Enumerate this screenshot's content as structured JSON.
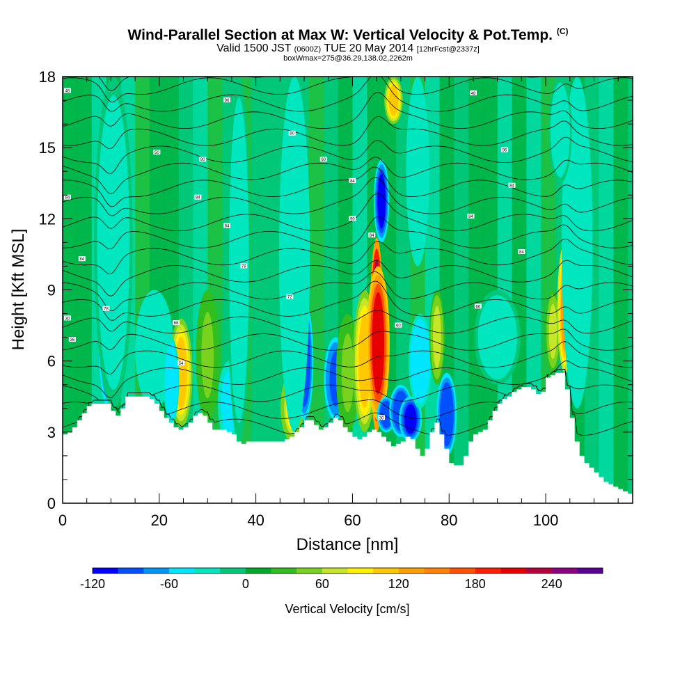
{
  "title": {
    "main": "Wind-Parallel Section at Max W: Vertical Velocity & Pot.Temp.",
    "copyright": "(C)",
    "valid_prefix": "Valid 1500 JST",
    "valid_utc": "(0600Z)",
    "valid_date": "TUE 20 May 2014",
    "forecast": "[12hrFcst@2337z]",
    "box": "boxWmax=275@36.29,138.02,2262m"
  },
  "chart_data": {
    "type": "heatmap",
    "xlabel": "Distance [nm]",
    "ylabel": "Height [Kft MSL]",
    "xlim": [
      0,
      118
    ],
    "ylim": [
      0,
      18
    ],
    "x_ticks": [
      0,
      20,
      40,
      60,
      80,
      100
    ],
    "y_ticks": [
      0,
      3,
      6,
      9,
      12,
      15,
      18
    ],
    "grid": false,
    "colorbar": {
      "title": "Vertical Velocity [cm/s]",
      "position": "bottom",
      "levels": [
        -120,
        -100,
        -80,
        -60,
        -40,
        -20,
        0,
        20,
        40,
        60,
        80,
        100,
        120,
        140,
        160,
        180,
        200,
        220,
        240,
        260,
        280
      ],
      "tick_labels": [
        "-120",
        "-60",
        "0",
        "60",
        "120",
        "180",
        "240"
      ],
      "tick_values": [
        -120,
        -60,
        0,
        60,
        120,
        180,
        240
      ],
      "colors": [
        "#0000ff",
        "#0050ff",
        "#0096f5",
        "#00e6ff",
        "#00e6be",
        "#00c878",
        "#00aa28",
        "#32be1e",
        "#78d21e",
        "#c8e628",
        "#fff000",
        "#ffc800",
        "#ffa000",
        "#ff8200",
        "#ff5000",
        "#ff1e00",
        "#e60000",
        "#b4003c",
        "#8c0082",
        "#5a0096"
      ]
    },
    "terrain_kft": [
      [
        0,
        2.9
      ],
      [
        1,
        3.0
      ],
      [
        2,
        3.2
      ],
      [
        3,
        3.5
      ],
      [
        4,
        3.8
      ],
      [
        5,
        4.1
      ],
      [
        6,
        4.2
      ],
      [
        7,
        4.2
      ],
      [
        8,
        4.2
      ],
      [
        9,
        4.2
      ],
      [
        10,
        3.9
      ],
      [
        11,
        3.7
      ],
      [
        12,
        4.0
      ],
      [
        13,
        4.5
      ],
      [
        14,
        4.5
      ],
      [
        15,
        4.5
      ],
      [
        16,
        4.5
      ],
      [
        17,
        4.5
      ],
      [
        18,
        4.4
      ],
      [
        19,
        4.2
      ],
      [
        20,
        3.9
      ],
      [
        21,
        3.6
      ],
      [
        22,
        3.4
      ],
      [
        23,
        3.2
      ],
      [
        24,
        3.1
      ],
      [
        25,
        3.2
      ],
      [
        26,
        3.4
      ],
      [
        27,
        3.7
      ],
      [
        28,
        3.8
      ],
      [
        29,
        3.7
      ],
      [
        30,
        3.4
      ],
      [
        31,
        3.1
      ],
      [
        32,
        3.1
      ],
      [
        33,
        3.1
      ],
      [
        34,
        3.0
      ],
      [
        35,
        2.9
      ],
      [
        36,
        2.6
      ],
      [
        37,
        2.5
      ],
      [
        38,
        2.6
      ],
      [
        39,
        2.6
      ],
      [
        40,
        2.6
      ],
      [
        41,
        2.6
      ],
      [
        42,
        2.6
      ],
      [
        43,
        2.6
      ],
      [
        44,
        2.6
      ],
      [
        45,
        2.6
      ],
      [
        46,
        2.7
      ],
      [
        47,
        2.8
      ],
      [
        48,
        3.0
      ],
      [
        49,
        3.2
      ],
      [
        50,
        3.5
      ],
      [
        51,
        3.5
      ],
      [
        52,
        3.3
      ],
      [
        53,
        3.1
      ],
      [
        54,
        3.2
      ],
      [
        55,
        3.4
      ],
      [
        56,
        3.6
      ],
      [
        57,
        3.5
      ],
      [
        58,
        3.2
      ],
      [
        59,
        3.0
      ],
      [
        60,
        2.8
      ],
      [
        61,
        2.7
      ],
      [
        62,
        2.8
      ],
      [
        63,
        3.0
      ],
      [
        64,
        3.1
      ],
      [
        65,
        3.0
      ],
      [
        66,
        2.8
      ],
      [
        67,
        2.6
      ],
      [
        68,
        2.4
      ],
      [
        69,
        2.5
      ],
      [
        70,
        2.6
      ],
      [
        71,
        2.8
      ],
      [
        72,
        2.7
      ],
      [
        73,
        2.3
      ],
      [
        74,
        2.0
      ],
      [
        75,
        2.3
      ],
      [
        76,
        3.0
      ],
      [
        77,
        3.4
      ],
      [
        78,
        2.9
      ],
      [
        79,
        2.3
      ],
      [
        80,
        1.7
      ],
      [
        81,
        1.6
      ],
      [
        82,
        1.6
      ],
      [
        83,
        2.0
      ],
      [
        84,
        2.6
      ],
      [
        85,
        2.9
      ],
      [
        86,
        3.0
      ],
      [
        87,
        3.1
      ],
      [
        88,
        3.5
      ],
      [
        89,
        3.9
      ],
      [
        90,
        4.2
      ],
      [
        91,
        4.4
      ],
      [
        92,
        4.5
      ],
      [
        93,
        4.7
      ],
      [
        94,
        4.8
      ],
      [
        95,
        4.9
      ],
      [
        96,
        4.9
      ],
      [
        97,
        4.8
      ],
      [
        98,
        4.6
      ],
      [
        99,
        4.7
      ],
      [
        100,
        5.3
      ],
      [
        101,
        5.4
      ],
      [
        102,
        5.5
      ],
      [
        103,
        5.5
      ],
      [
        104,
        4.8
      ],
      [
        105,
        3.6
      ],
      [
        106,
        2.6
      ],
      [
        107,
        2.0
      ],
      [
        108,
        1.7
      ],
      [
        109,
        1.5
      ],
      [
        110,
        1.3
      ],
      [
        111,
        1.1
      ],
      [
        112,
        0.9
      ],
      [
        113,
        0.8
      ],
      [
        114,
        0.7
      ],
      [
        115,
        0.6
      ],
      [
        116,
        0.5
      ],
      [
        117,
        0.4
      ],
      [
        118,
        0.3
      ]
    ],
    "vertical_velocity_features": [
      {
        "x": 9.5,
        "z_low": 4.0,
        "z_high": 10.0,
        "value": -100,
        "width_nm": 1.3
      },
      {
        "x": 11.2,
        "z_low": 4.5,
        "z_high": 11.0,
        "value": 80,
        "width_nm": 1.0
      },
      {
        "x": 10.5,
        "z_low": 4.0,
        "z_high": 18.0,
        "value": -30,
        "width_nm": 2.5
      },
      {
        "x": 19.0,
        "z_low": 4.0,
        "z_high": 9.0,
        "value": -40,
        "width_nm": 2.5
      },
      {
        "x": 24.5,
        "z_low": 3.2,
        "z_high": 7.8,
        "value": 100,
        "width_nm": 1.5
      },
      {
        "x": 22.5,
        "z_low": 3.3,
        "z_high": 7.0,
        "value": -60,
        "width_nm": 1.0
      },
      {
        "x": 30.0,
        "z_low": 3.5,
        "z_high": 9.0,
        "value": 40,
        "width_nm": 1.5
      },
      {
        "x": 34.5,
        "z_low": 2.5,
        "z_high": 6.0,
        "value": -50,
        "width_nm": 1.5
      },
      {
        "x": 36.5,
        "z_low": 2.5,
        "z_high": 18.0,
        "value": -30,
        "width_nm": 1.5
      },
      {
        "x": 47.5,
        "z_low": 2.6,
        "z_high": 5.5,
        "value": 80,
        "width_nm": 1.5
      },
      {
        "x": 50.0,
        "z_low": 3.5,
        "z_high": 8.5,
        "value": -100,
        "width_nm": 1.2
      },
      {
        "x": 48.0,
        "z_low": 3.0,
        "z_high": 18.0,
        "value": -40,
        "width_nm": 2.0
      },
      {
        "x": 56.5,
        "z_low": 3.5,
        "z_high": 7.0,
        "value": -90,
        "width_nm": 1.5
      },
      {
        "x": 59.0,
        "z_low": 3.0,
        "z_high": 8.0,
        "value": 40,
        "width_nm": 1.5
      },
      {
        "x": 62.5,
        "z_low": 3.0,
        "z_high": 9.0,
        "value": 110,
        "width_nm": 1.5
      },
      {
        "x": 65.0,
        "z_low": 3.0,
        "z_high": 11.2,
        "value": 270,
        "width_nm": 0.9
      },
      {
        "x": 65.3,
        "z_low": 3.5,
        "z_high": 10.0,
        "value": 200,
        "width_nm": 1.5
      },
      {
        "x": 67.0,
        "z_low": 3.0,
        "z_high": 4.5,
        "value": -100,
        "width_nm": 1.2
      },
      {
        "x": 66.0,
        "z_low": 11.0,
        "z_high": 14.5,
        "value": -110,
        "width_nm": 1.0
      },
      {
        "x": 68.5,
        "z_low": 16.0,
        "z_high": 18.0,
        "value": 110,
        "width_nm": 1.2
      },
      {
        "x": 70.0,
        "z_low": 2.8,
        "z_high": 5.0,
        "value": -100,
        "width_nm": 1.5
      },
      {
        "x": 72.0,
        "z_low": 2.6,
        "z_high": 4.5,
        "value": -110,
        "width_nm": 1.5
      },
      {
        "x": 74.0,
        "z_low": 4.0,
        "z_high": 8.0,
        "value": -60,
        "width_nm": 1.5
      },
      {
        "x": 73.5,
        "z_low": 10.0,
        "z_high": 18.0,
        "value": -40,
        "width_nm": 1.5
      },
      {
        "x": 79.5,
        "z_low": 2.0,
        "z_high": 5.5,
        "value": -100,
        "width_nm": 1.3
      },
      {
        "x": 77.5,
        "z_low": 5.0,
        "z_high": 9.0,
        "value": 60,
        "width_nm": 1.0
      },
      {
        "x": 101.5,
        "z_low": 5.5,
        "z_high": 9.0,
        "value": 60,
        "width_nm": 1.0
      },
      {
        "x": 104.0,
        "z_low": 5.5,
        "z_high": 11.0,
        "value": 130,
        "width_nm": 1.0
      },
      {
        "x": 106.5,
        "z_low": 4.0,
        "z_high": 18.0,
        "value": -40,
        "width_nm": 2.0
      },
      {
        "x": 103.0,
        "z_low": 13.5,
        "z_high": 18.0,
        "value": -30,
        "width_nm": 1.5
      },
      {
        "x": 90.0,
        "z_low": 5.0,
        "z_high": 9.0,
        "value": -30,
        "width_nm": 3.0
      }
    ],
    "potential_temperature_contours": {
      "labels": [
        "30",
        "36",
        "42",
        "48",
        "50",
        "54",
        "60",
        "66",
        "72",
        "78",
        "84",
        "90",
        "96"
      ],
      "label_positions_kft": [
        {
          "x": 1.0,
          "z": 17.4,
          "text": "48"
        },
        {
          "x": 34.0,
          "z": 17.0,
          "text": "96"
        },
        {
          "x": 47.5,
          "z": 15.6,
          "text": "90"
        },
        {
          "x": 85.0,
          "z": 17.3,
          "text": "48"
        },
        {
          "x": 19.5,
          "z": 14.8,
          "text": "50"
        },
        {
          "x": 29.0,
          "z": 14.5,
          "text": "90"
        },
        {
          "x": 54.0,
          "z": 14.5,
          "text": "60"
        },
        {
          "x": 91.5,
          "z": 14.9,
          "text": "96"
        },
        {
          "x": 28.0,
          "z": 12.9,
          "text": "84"
        },
        {
          "x": 60.0,
          "z": 13.6,
          "text": "84"
        },
        {
          "x": 93.0,
          "z": 13.4,
          "text": "84"
        },
        {
          "x": 1.0,
          "z": 12.9,
          "text": "84"
        },
        {
          "x": 34.0,
          "z": 11.7,
          "text": "84"
        },
        {
          "x": 60.0,
          "z": 12.0,
          "text": "90"
        },
        {
          "x": 84.5,
          "z": 12.1,
          "text": "84"
        },
        {
          "x": 64.0,
          "z": 11.3,
          "text": "84"
        },
        {
          "x": 4.0,
          "z": 10.3,
          "text": "84"
        },
        {
          "x": 37.5,
          "z": 10.0,
          "text": "78"
        },
        {
          "x": 95.0,
          "z": 10.6,
          "text": "84"
        },
        {
          "x": 47.0,
          "z": 8.7,
          "text": "72"
        },
        {
          "x": 9.0,
          "z": 8.2,
          "text": "78"
        },
        {
          "x": 86.0,
          "z": 8.3,
          "text": "66"
        },
        {
          "x": 1.0,
          "z": 7.8,
          "text": "30"
        },
        {
          "x": 23.5,
          "z": 7.6,
          "text": "66"
        },
        {
          "x": 69.5,
          "z": 7.5,
          "text": "60"
        },
        {
          "x": 2.0,
          "z": 6.9,
          "text": "36"
        },
        {
          "x": 24.5,
          "z": 5.9,
          "text": "54"
        },
        {
          "x": 66.0,
          "z": 3.6,
          "text": "30"
        }
      ]
    }
  }
}
